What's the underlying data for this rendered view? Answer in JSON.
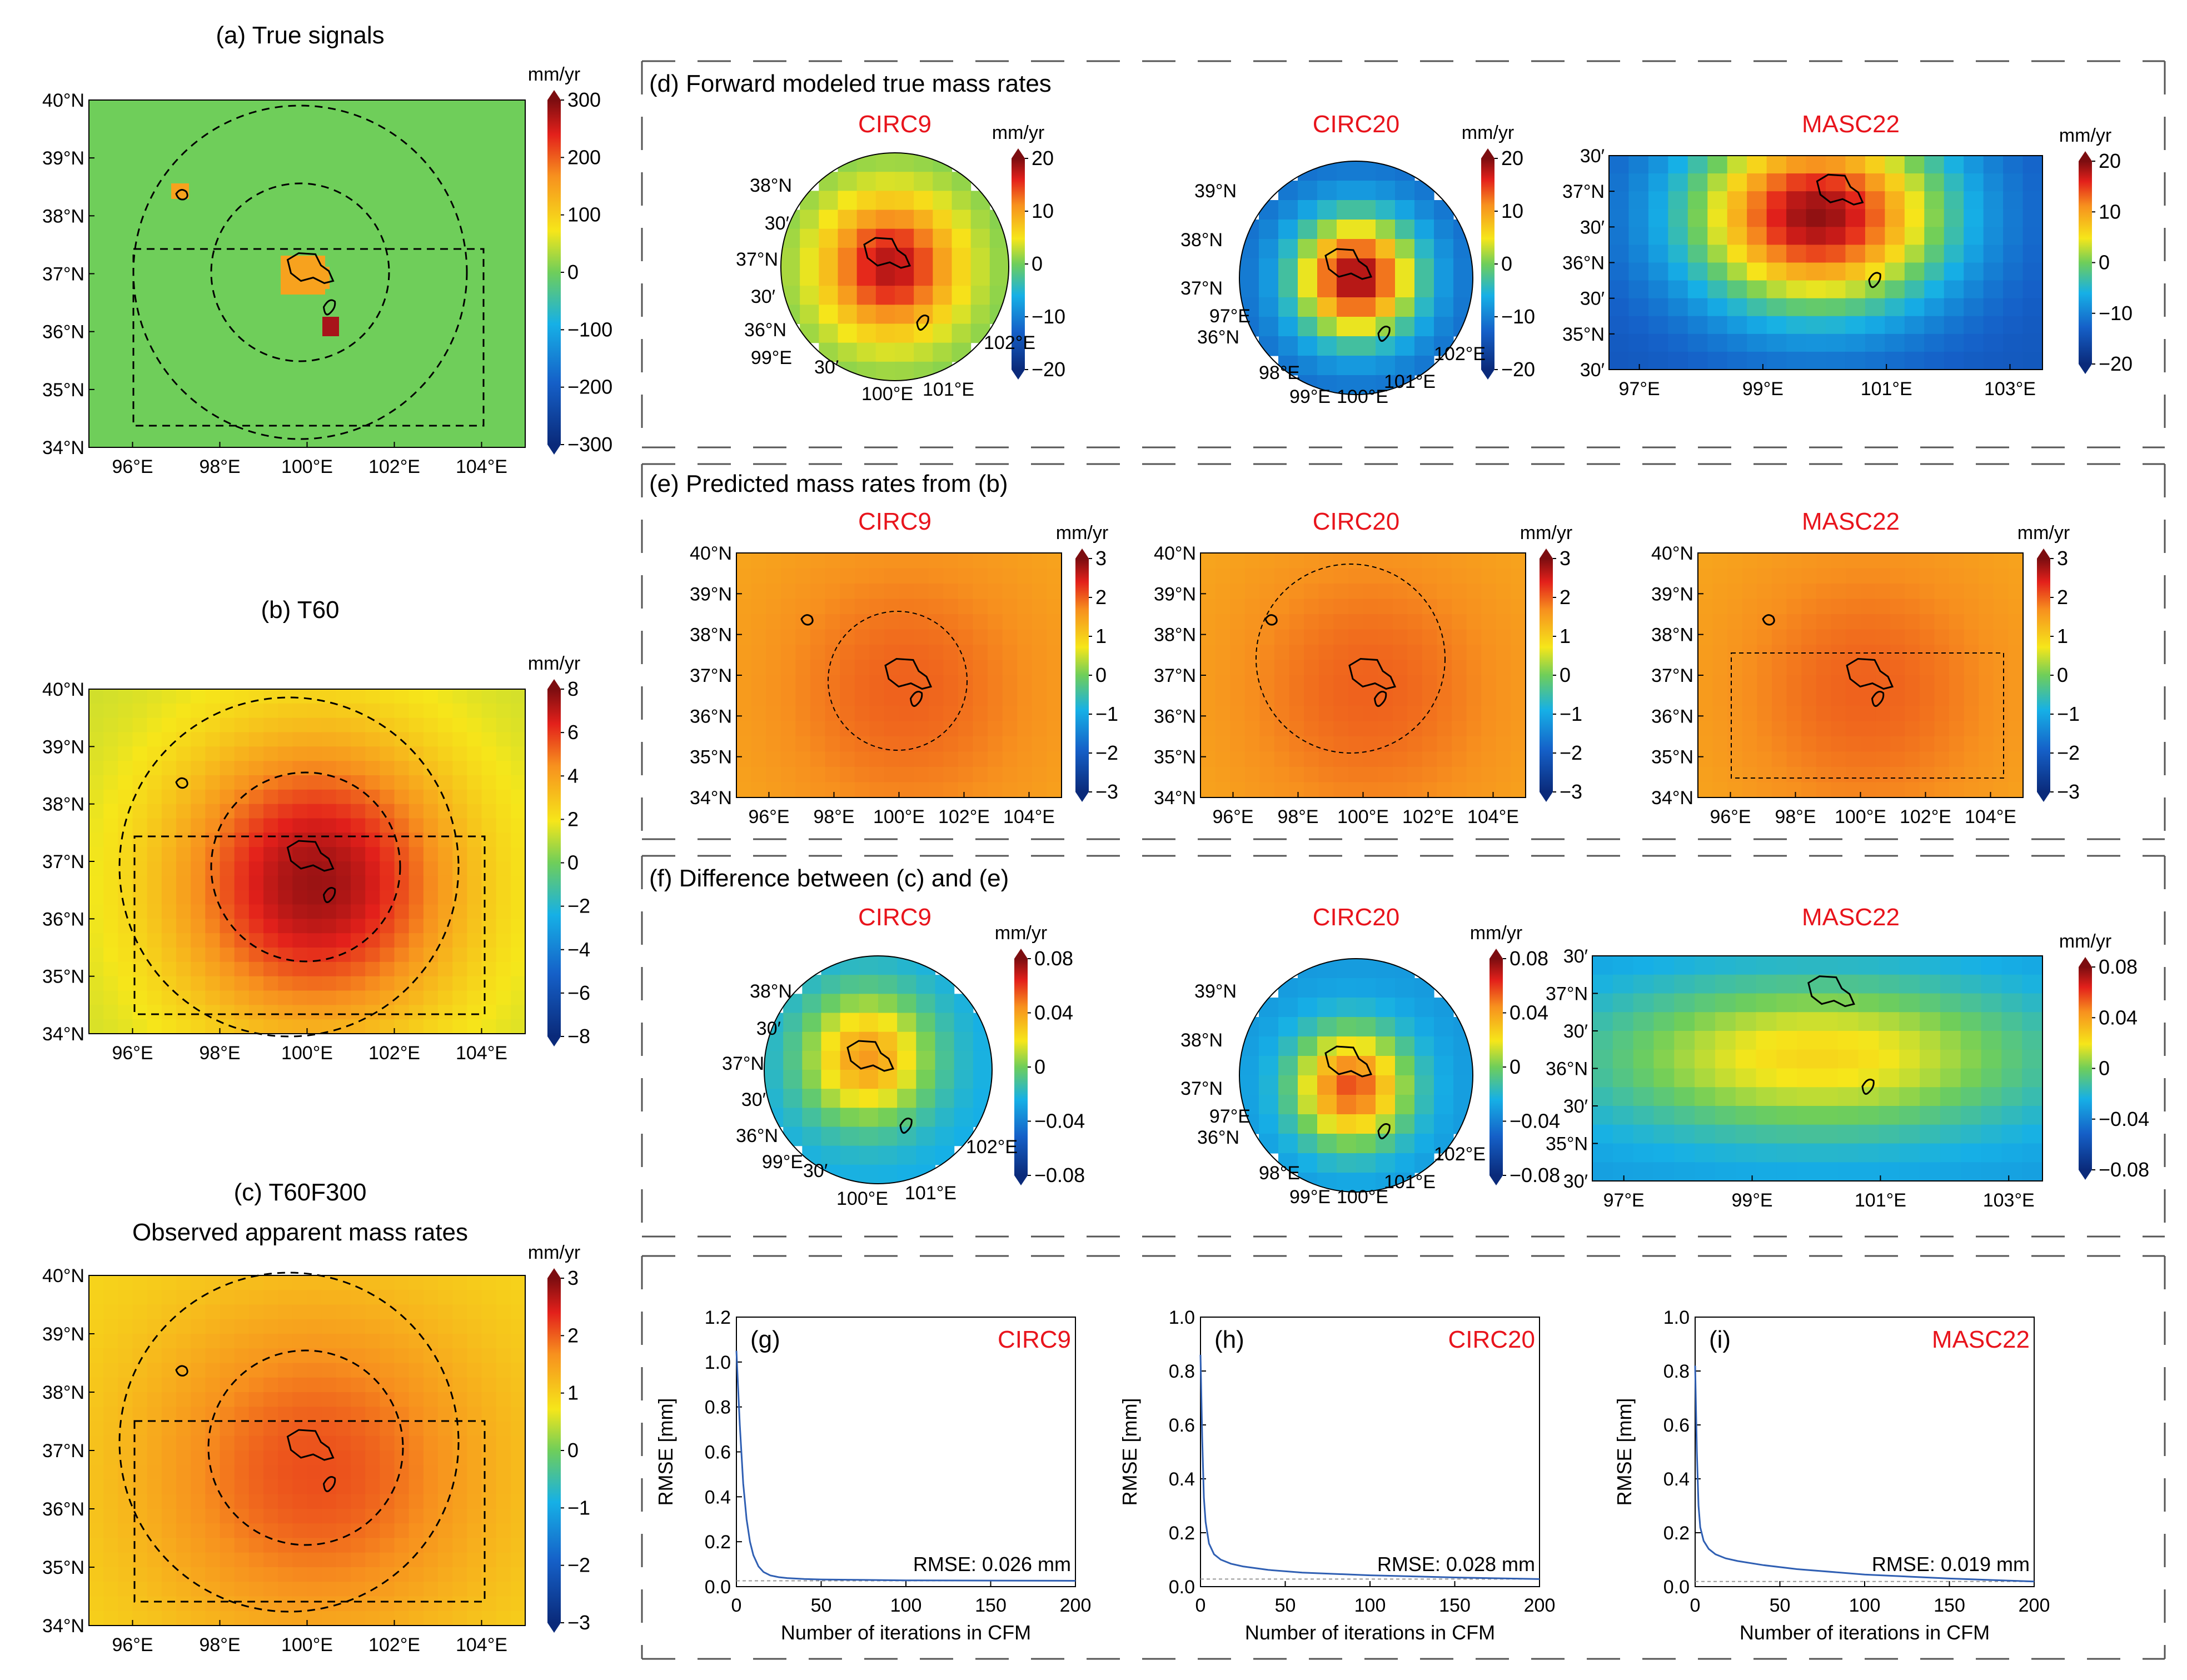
{
  "colors": {
    "title_red": "#e8141c",
    "outline": "#000000",
    "rmse_line": "#2f5fb3",
    "ref_line": "#999999",
    "box_dash": "#555555"
  },
  "units": "mm/yr",
  "panels": {
    "a": {
      "title": "(a) True signals"
    },
    "b": {
      "title": "(b) T60"
    },
    "c": {
      "title_line1": "(c) T60F300",
      "title_line2": "Observed apparent mass rates"
    },
    "d": {
      "title": "(d) Forward modeled true mass rates"
    },
    "e": {
      "title": "(e) Predicted mass rates from (b)"
    },
    "f": {
      "title": "(f) Difference between (c) and (e)"
    }
  },
  "sublabels": {
    "circ9": "CIRC9",
    "circ20": "CIRC20",
    "masc22": "MASC22"
  },
  "left_axes": {
    "lat_ticks": [
      "40°N",
      "39°N",
      "38°N",
      "37°N",
      "36°N",
      "35°N",
      "34°N"
    ],
    "lon_ticks": [
      "96°E",
      "98°E",
      "100°E",
      "102°E",
      "104°E"
    ]
  },
  "masc_axes": {
    "lat_ticks": [
      "30′",
      "37°N",
      "30′",
      "36°N",
      "30′",
      "35°N",
      "30′"
    ],
    "lon_ticks": [
      "97°E",
      "99°E",
      "101°E",
      "103°E"
    ]
  },
  "circ9_labels": [
    "38°N",
    "30′",
    "37°N",
    "30′",
    "36°N",
    "99°E",
    "30′",
    "100°E",
    "101°E",
    "102°E"
  ],
  "circ20_labels": [
    "39°N",
    "38°N",
    "37°N",
    "97°E",
    "36°N",
    "98°E",
    "99°E",
    "100°E",
    "101°E",
    "102°E"
  ],
  "colorbars": {
    "a": [
      "300",
      "200",
      "100",
      "0",
      "−100",
      "−200",
      "−300"
    ],
    "b": [
      "8",
      "6",
      "4",
      "2",
      "0",
      "−2",
      "−4",
      "−6",
      "−8"
    ],
    "c": [
      "3",
      "2",
      "1",
      "0",
      "−1",
      "−2",
      "−3"
    ],
    "d": [
      "20",
      "10",
      "0",
      "−10",
      "−20"
    ],
    "e": [
      "3",
      "2",
      "1",
      "0",
      "−1",
      "−2",
      "−3"
    ],
    "f": [
      "0.08",
      "0.04",
      "0",
      "−0.04",
      "−0.08"
    ]
  },
  "chart_data": [
    {
      "type": "heatmap",
      "title": "(a) True signals",
      "colorbar_label": "mm/yr",
      "clim": [
        -300,
        300
      ],
      "xlim": [
        95,
        105
      ],
      "ylim": [
        34,
        40
      ],
      "background_value": 0,
      "anomaly_values": {
        "lake_nw": 150,
        "central_cluster": 170,
        "southeast_patch": 280
      }
    },
    {
      "type": "heatmap",
      "title": "(b) T60",
      "colorbar_label": "mm/yr",
      "clim": [
        -8,
        8
      ],
      "peak_value": 7.5,
      "edge_value": 0.5
    },
    {
      "type": "heatmap",
      "title": "(c) T60F300 Observed apparent mass rates",
      "colorbar_label": "mm/yr",
      "clim": [
        -3,
        3
      ],
      "peak_value": 2.1,
      "edge_value": 0.9
    },
    {
      "type": "heatmap",
      "title": "(d) Forward modeled true mass rates",
      "colorbar_label": "mm/yr",
      "clim": [
        -20,
        20
      ],
      "subplots": [
        "CIRC9",
        "CIRC20",
        "MASC22"
      ]
    },
    {
      "type": "heatmap",
      "title": "(e) Predicted mass rates from (b)",
      "colorbar_label": "mm/yr",
      "clim": [
        -3,
        3
      ],
      "subplots": [
        "CIRC9",
        "CIRC20",
        "MASC22"
      ],
      "peak_value": 2.0,
      "edge_value": 1.4
    },
    {
      "type": "heatmap",
      "title": "(f) Difference between (c) and (e)",
      "colorbar_label": "mm/yr",
      "clim": [
        -0.08,
        0.08
      ],
      "subplots": [
        "CIRC9",
        "CIRC20",
        "MASC22"
      ]
    },
    {
      "type": "line",
      "panel_label": "(g)",
      "label": "CIRC9",
      "xlabel": "Number of iterations in CFM",
      "ylabel": "RMSE [mm]",
      "xlim": [
        0,
        200
      ],
      "ylim": [
        0,
        1.2
      ],
      "xticks": [
        "0",
        "50",
        "100",
        "150",
        "200"
      ],
      "yticks": [
        "0.0",
        "0.2",
        "0.4",
        "0.6",
        "0.8",
        "1.0",
        "1.2"
      ],
      "x": [
        0,
        2,
        4,
        6,
        8,
        10,
        13,
        16,
        20,
        25,
        30,
        40,
        50,
        75,
        100,
        150,
        200
      ],
      "y": [
        1.05,
        0.72,
        0.46,
        0.3,
        0.2,
        0.14,
        0.09,
        0.065,
        0.05,
        0.042,
        0.038,
        0.034,
        0.032,
        0.03,
        0.028,
        0.027,
        0.026
      ],
      "reference_line": 0.026,
      "annotation": "RMSE: 0.026 mm"
    },
    {
      "type": "line",
      "panel_label": "(h)",
      "label": "CIRC20",
      "xlabel": "Number of iterations in CFM",
      "ylabel": "RMSE [mm]",
      "xlim": [
        0,
        200
      ],
      "ylim": [
        0,
        1.0
      ],
      "xticks": [
        "0",
        "50",
        "100",
        "150",
        "200"
      ],
      "yticks": [
        "0.0",
        "0.2",
        "0.4",
        "0.6",
        "0.8",
        "1.0"
      ],
      "x": [
        0,
        1,
        2,
        3,
        5,
        8,
        12,
        18,
        25,
        40,
        60,
        100,
        150,
        200
      ],
      "y": [
        0.86,
        0.55,
        0.33,
        0.24,
        0.16,
        0.12,
        0.1,
        0.085,
        0.075,
        0.062,
        0.052,
        0.042,
        0.034,
        0.028
      ],
      "reference_line": 0.028,
      "annotation": "RMSE: 0.028 mm"
    },
    {
      "type": "line",
      "panel_label": "(i)",
      "label": "MASC22",
      "xlabel": "Number of iterations in CFM",
      "ylabel": "RMSE [mm]",
      "xlim": [
        0,
        200
      ],
      "ylim": [
        0,
        1.0
      ],
      "xticks": [
        "0",
        "50",
        "100",
        "150",
        "200"
      ],
      "yticks": [
        "0.0",
        "0.2",
        "0.4",
        "0.6",
        "0.8",
        "1.0"
      ],
      "x": [
        0,
        1,
        2,
        3,
        5,
        8,
        12,
        18,
        25,
        40,
        60,
        100,
        150,
        200
      ],
      "y": [
        0.82,
        0.5,
        0.3,
        0.22,
        0.17,
        0.14,
        0.12,
        0.105,
        0.095,
        0.08,
        0.065,
        0.045,
        0.03,
        0.019
      ],
      "reference_line": 0.019,
      "annotation": "RMSE: 0.019 mm"
    }
  ]
}
